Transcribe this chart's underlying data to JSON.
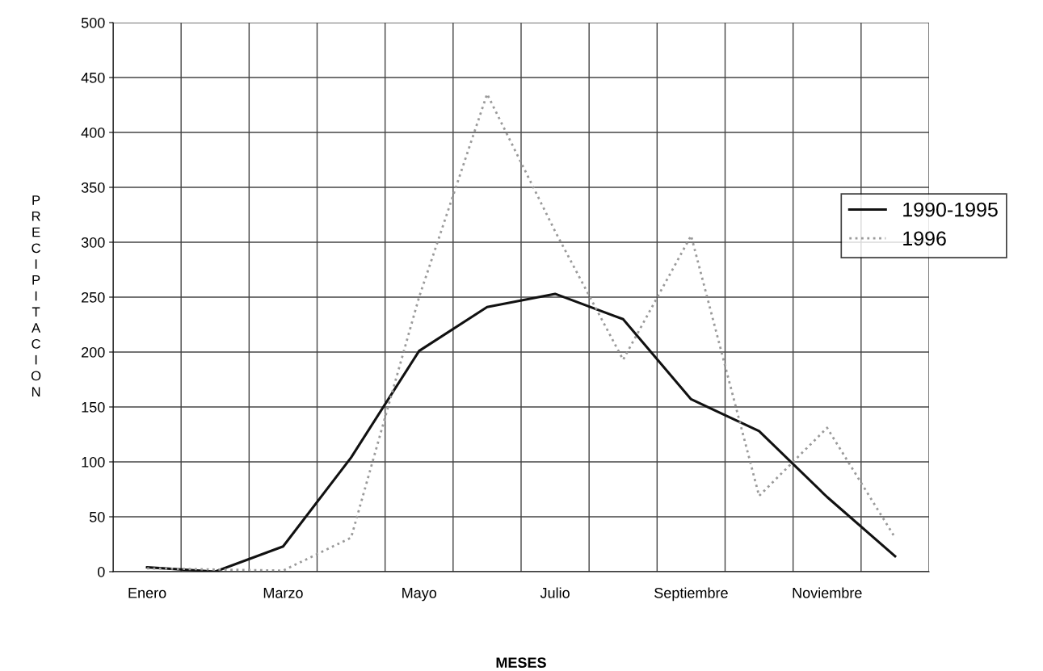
{
  "chart_data": {
    "type": "line",
    "xlabel": "MESES",
    "ylabel": "PRECIPITACION",
    "categories": [
      "Enero",
      null,
      "Marzo",
      null,
      "Mayo",
      null,
      "Julio",
      null,
      "Septiembre",
      null,
      "Noviembre",
      null
    ],
    "series": [
      {
        "name": "1990-1995",
        "color": "#111111",
        "line_style": "solid",
        "values": [
          4,
          0,
          23,
          104,
          201,
          241,
          253,
          230,
          157,
          128,
          68,
          14
        ]
      },
      {
        "name": "1996",
        "color": "#9a9a9a",
        "line_style": "dotted",
        "values": [
          3,
          2,
          1,
          31,
          250,
          435,
          310,
          193,
          306,
          69,
          131,
          31
        ]
      }
    ],
    "ylim": [
      0,
      500
    ],
    "yticks": [
      0,
      50,
      100,
      150,
      200,
      250,
      300,
      350,
      400,
      450,
      500
    ],
    "grid": true,
    "legend": "right",
    "marker": "none"
  }
}
